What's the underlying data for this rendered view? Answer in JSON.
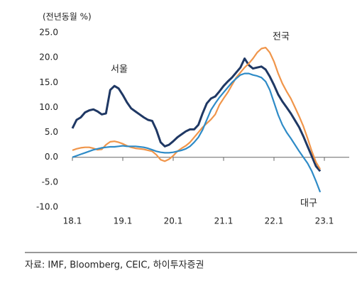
{
  "chart_data": {
    "type": "line",
    "y_label": "(전년동월 %)",
    "categories": [
      "18.1",
      null,
      null,
      null,
      null,
      null,
      null,
      null,
      null,
      null,
      null,
      null,
      "19.1",
      null,
      null,
      null,
      null,
      null,
      null,
      null,
      null,
      null,
      null,
      null,
      "20.1",
      null,
      null,
      null,
      null,
      null,
      null,
      null,
      null,
      null,
      null,
      null,
      "21.1",
      null,
      null,
      null,
      null,
      null,
      null,
      null,
      null,
      null,
      null,
      null,
      "22.1",
      null,
      null,
      null,
      null,
      null,
      null,
      null,
      null,
      null,
      null,
      null,
      "23.1"
    ],
    "series": [
      {
        "name": "서울",
        "color": "#1f3864",
        "values": [
          5.8,
          7.5,
          8.0,
          9.0,
          9.4,
          9.6,
          9.2,
          8.6,
          8.8,
          13.5,
          14.3,
          13.8,
          12.5,
          11.0,
          9.8,
          9.2,
          8.6,
          8.0,
          7.5,
          7.3,
          5.5,
          3.0,
          2.2,
          2.5,
          3.2,
          4.0,
          4.6,
          5.2,
          5.6,
          5.6,
          6.5,
          8.8,
          10.8,
          11.8,
          12.2,
          13.2,
          14.3,
          15.2,
          16.0,
          17.0,
          18.0,
          19.8,
          18.5,
          17.8,
          18.0,
          18.2,
          17.6,
          16.2,
          14.5,
          12.6,
          11.2,
          10.0,
          8.8,
          7.4,
          6.0,
          4.2,
          2.2,
          0.2,
          -1.8,
          -2.8,
          null
        ]
      },
      {
        "name": "전국",
        "color": "#f0954a",
        "values": [
          1.4,
          1.7,
          1.9,
          2.0,
          2.0,
          1.8,
          1.5,
          1.6,
          2.5,
          3.1,
          3.2,
          3.0,
          2.7,
          2.3,
          2.0,
          1.8,
          1.7,
          1.6,
          1.4,
          1.2,
          0.5,
          -0.5,
          -0.8,
          -0.4,
          0.3,
          1.2,
          1.8,
          2.3,
          3.0,
          4.0,
          5.0,
          6.0,
          6.8,
          7.6,
          8.6,
          10.5,
          11.8,
          13.0,
          14.5,
          16.0,
          17.0,
          18.0,
          18.8,
          19.8,
          21.0,
          21.8,
          22.0,
          21.0,
          19.2,
          16.8,
          14.8,
          13.2,
          11.8,
          10.0,
          8.2,
          6.2,
          3.8,
          1.2,
          -1.0,
          -2.4,
          null
        ]
      },
      {
        "name": "대구",
        "color": "#2e8bc7",
        "values": [
          0.0,
          0.3,
          0.6,
          0.9,
          1.2,
          1.5,
          1.7,
          1.9,
          2.0,
          2.1,
          2.1,
          2.2,
          2.3,
          2.2,
          2.2,
          2.2,
          2.1,
          2.0,
          1.8,
          1.5,
          1.2,
          1.0,
          0.9,
          0.9,
          1.0,
          1.2,
          1.4,
          1.7,
          2.2,
          3.0,
          4.0,
          5.5,
          7.5,
          9.5,
          10.8,
          12.0,
          13.0,
          14.0,
          15.0,
          15.8,
          16.5,
          16.8,
          16.8,
          16.5,
          16.3,
          16.0,
          15.2,
          13.5,
          11.0,
          8.5,
          6.5,
          5.0,
          3.8,
          2.5,
          1.2,
          0.0,
          -1.2,
          -2.8,
          -4.8,
          -7.0,
          null
        ]
      }
    ],
    "ylim": [
      -10,
      25
    ],
    "yticks": [
      {
        "value": 25,
        "label": "25.0"
      },
      {
        "value": 20,
        "label": "20.0"
      },
      {
        "value": 15,
        "label": "15.0"
      },
      {
        "value": 10,
        "label": "10.0"
      },
      {
        "value": 5,
        "label": "5.0"
      },
      {
        "value": 0,
        "label": "0.0"
      },
      {
        "value": -5,
        "label": "-5.0"
      },
      {
        "value": -10,
        "label": "-10.0"
      }
    ],
    "source": "자료: IMF, Bloomberg, CEIC, 하이투자증권"
  }
}
